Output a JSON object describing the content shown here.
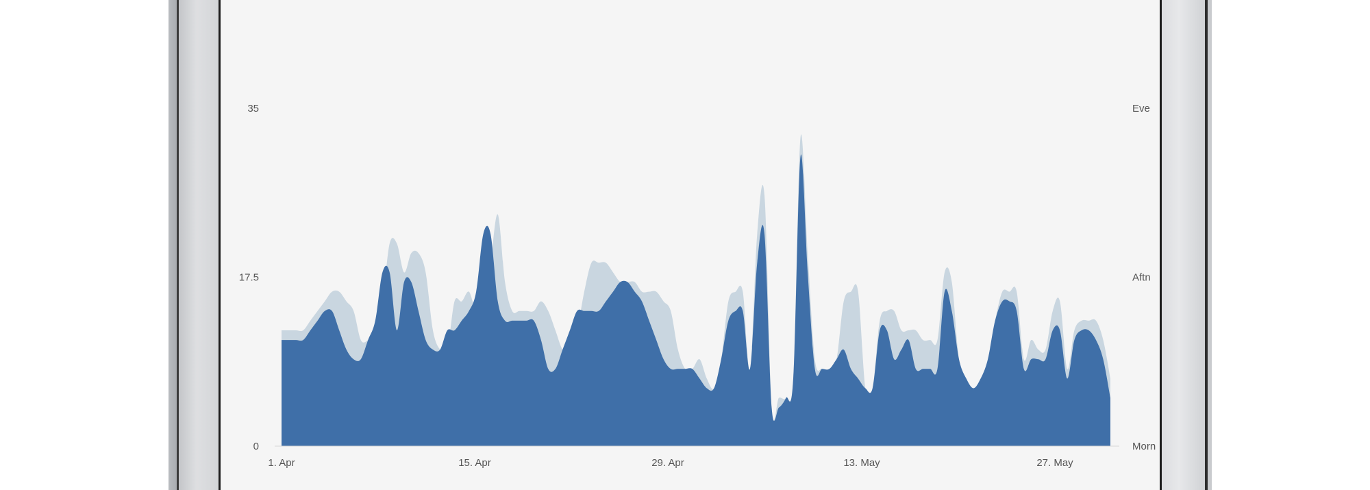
{
  "chart_data": {
    "type": "area",
    "title": "",
    "xlabel": "",
    "ylabel": "",
    "ylim": [
      0,
      35
    ],
    "yticks": [
      "0",
      "17.5",
      "35"
    ],
    "y2ticks": [
      "Morn",
      "Aftn",
      "Eve"
    ],
    "xticks": [
      "1. Apr",
      "15. Apr",
      "29. Apr",
      "13. May",
      "27. May"
    ],
    "grid": false,
    "legend": "none",
    "colors": {
      "front": "#3f6fa8",
      "back": "#c9d6e0",
      "axis_text": "#555555",
      "background": "#f5f5f5"
    },
    "series": [
      {
        "values": [
          12,
          12,
          12,
          12,
          13,
          14,
          15,
          16,
          16,
          15,
          14,
          11,
          11,
          12,
          15,
          21,
          21,
          18,
          20,
          20,
          18,
          12,
          10,
          10,
          15,
          15,
          16,
          14,
          15,
          19,
          24,
          17,
          14,
          14,
          14,
          14,
          15,
          14,
          12,
          10,
          10,
          12,
          16,
          19,
          19,
          19,
          18,
          17,
          17,
          17,
          16,
          16,
          16,
          15,
          14,
          10,
          8,
          8,
          9,
          7,
          6,
          9,
          15,
          16,
          16,
          8,
          22,
          26,
          4,
          5,
          5,
          7,
          32,
          20,
          9,
          8,
          8,
          9,
          15,
          16,
          16,
          6,
          6,
          13,
          14,
          14,
          12,
          12,
          12,
          11,
          11,
          11,
          18,
          17,
          9,
          7,
          6,
          7,
          9,
          13,
          16,
          16,
          16,
          9,
          11,
          10,
          10,
          14,
          15,
          8,
          12,
          13,
          13,
          13,
          11,
          7
        ]
      },
      {
        "values": [
          11,
          11,
          11,
          11,
          12,
          13,
          14,
          14,
          12,
          10,
          9,
          9,
          11,
          13,
          18,
          18,
          12,
          17,
          17,
          14,
          11,
          10,
          10,
          12,
          12,
          13,
          14,
          16,
          22,
          22,
          15,
          13,
          13,
          13,
          13,
          13,
          11,
          8,
          8,
          10,
          12,
          14,
          14,
          14,
          14,
          15,
          16,
          17,
          17,
          16,
          15,
          13,
          11,
          9,
          8,
          8,
          8,
          8,
          7,
          6,
          6,
          9,
          13,
          14,
          14,
          8,
          19,
          22,
          4,
          4,
          5,
          7,
          30,
          18,
          8,
          8,
          8,
          9,
          10,
          8,
          7,
          6,
          6,
          12,
          12,
          9,
          10,
          11,
          8,
          8,
          8,
          8,
          16,
          14,
          9,
          7,
          6,
          7,
          9,
          13,
          15,
          15,
          14,
          8,
          9,
          9,
          9,
          12,
          12,
          7,
          11,
          12,
          12,
          11,
          9,
          5
        ]
      }
    ]
  }
}
